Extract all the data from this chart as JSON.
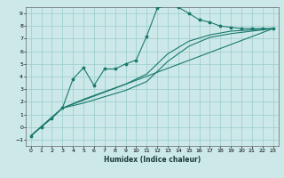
{
  "title": "",
  "xlabel": "Humidex (Indice chaleur)",
  "ylabel": "",
  "xlim": [
    -0.5,
    23.5
  ],
  "ylim": [
    -1.5,
    9.5
  ],
  "xticks": [
    0,
    1,
    2,
    3,
    4,
    5,
    6,
    7,
    8,
    9,
    10,
    11,
    12,
    13,
    14,
    15,
    16,
    17,
    18,
    19,
    20,
    21,
    22,
    23
  ],
  "yticks": [
    -1,
    0,
    1,
    2,
    3,
    4,
    5,
    6,
    7,
    8,
    9
  ],
  "background_color": "#cce8e8",
  "grid_color": "#99cccc",
  "line_color": "#1a7a6e",
  "line1_x": [
    0,
    1,
    2,
    3,
    4,
    5,
    6,
    7,
    8,
    9,
    10,
    11,
    12,
    13,
    14,
    15,
    16,
    17,
    18,
    19,
    20,
    21,
    22,
    23
  ],
  "line1_y": [
    -0.7,
    0.0,
    0.7,
    1.5,
    3.8,
    4.7,
    3.3,
    4.6,
    4.6,
    5.0,
    5.3,
    7.2,
    9.4,
    9.7,
    9.5,
    9.0,
    8.5,
    8.3,
    8.0,
    7.9,
    7.8,
    7.8,
    7.8,
    7.8
  ],
  "line2_x": [
    0,
    3,
    23
  ],
  "line2_y": [
    -0.7,
    1.5,
    7.8
  ],
  "line3_x": [
    0,
    3,
    5,
    7,
    9,
    11,
    13,
    15,
    17,
    19,
    21,
    23
  ],
  "line3_y": [
    -0.7,
    1.5,
    2.2,
    2.8,
    3.4,
    4.2,
    5.8,
    6.8,
    7.3,
    7.6,
    7.7,
    7.8
  ],
  "line4_x": [
    0,
    3,
    5,
    7,
    9,
    11,
    13,
    15,
    17,
    19,
    21,
    23
  ],
  "line4_y": [
    -0.7,
    1.5,
    1.9,
    2.4,
    2.9,
    3.6,
    5.2,
    6.4,
    7.1,
    7.4,
    7.6,
    7.8
  ]
}
